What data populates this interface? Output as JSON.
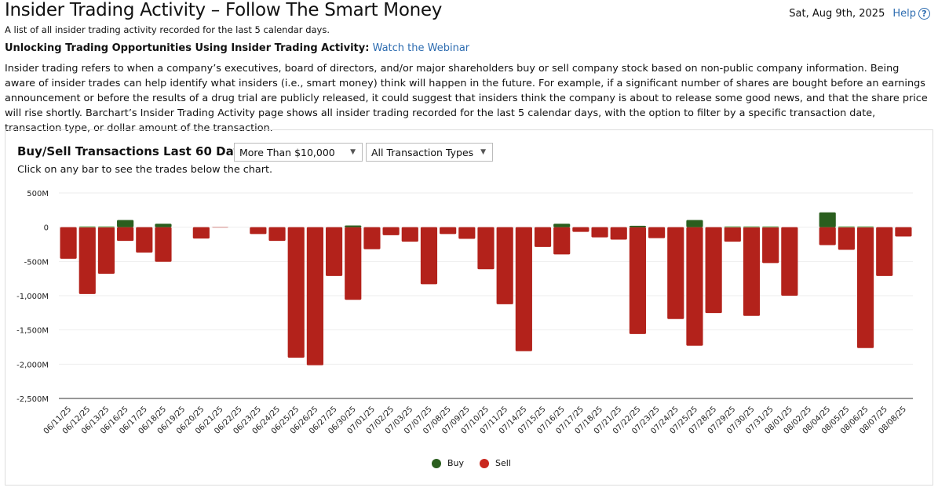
{
  "header": {
    "title": "Insider Trading Activity – Follow The Smart Money",
    "subtitle": "A list of all insider trading activity recorded for the last 5 calendar days.",
    "date": "Sat, Aug 9th, 2025",
    "help_label": "Help",
    "help_icon": "question-circle-icon"
  },
  "promo": {
    "label": "Unlocking Trading Opportunities Using Insider Trading Activity:",
    "link": "Watch the Webinar"
  },
  "description": "Insider trading refers to when a company’s executives, board of directors, and/or major shareholders buy or sell company stock based on non-public company information. Being aware of insider trades can help identify what insiders (i.e., smart money) think will happen in the future. For example, if a significant number of shares are bought before an earnings announcement or before the results of a drug trial are publicly released, it could suggest that insiders think the company is about to release some good news, and that the share price will rise shortly. Barchart’s Insider Trading Activity page shows all insider trading recorded for the last 5 calendar days, with the option to filter by a specific transaction date, transaction type, or dollar amount of the transaction.",
  "filters": {
    "amount": "More Than $10,000",
    "type": "All Transaction Types"
  },
  "chart_hint": "Click on any bar to see the trades below the chart.",
  "colors": {
    "buy": "#2a5e1e",
    "sell": "#b3221b"
  },
  "chart_data": {
    "type": "bar",
    "title": "Buy/Sell Transactions Last 60 Days",
    "xlabel": "",
    "ylabel": "",
    "ylim": [
      -2500,
      500
    ],
    "yticks": [
      500,
      0,
      -500,
      -1000,
      -1500,
      -2000,
      -2500
    ],
    "ytick_labels": [
      "500M",
      "0",
      "-500M",
      "-1,000M",
      "-1,500M",
      "-2,000M",
      "-2,500M"
    ],
    "legend": {
      "position": "bottom",
      "entries": [
        "Buy",
        "Sell"
      ]
    },
    "categories": [
      "06/11/25",
      "06/12/25",
      "06/13/25",
      "06/16/25",
      "06/17/25",
      "06/18/25",
      "06/19/25",
      "06/20/25",
      "06/21/25",
      "06/22/25",
      "06/23/25",
      "06/24/25",
      "06/25/25",
      "06/26/25",
      "06/27/25",
      "06/30/25",
      "07/01/25",
      "07/02/25",
      "07/03/25",
      "07/07/25",
      "07/08/25",
      "07/09/25",
      "07/10/25",
      "07/11/25",
      "07/14/25",
      "07/15/25",
      "07/16/25",
      "07/17/25",
      "07/18/25",
      "07/21/25",
      "07/22/25",
      "07/23/25",
      "07/24/25",
      "07/25/25",
      "07/28/25",
      "07/29/25",
      "07/30/25",
      "07/31/25",
      "08/01/25",
      "08/02/25",
      "08/04/25",
      "08/05/25",
      "08/06/25",
      "08/07/25",
      "08/08/25"
    ],
    "series": [
      {
        "name": "Buy",
        "values": [
          0,
          15,
          15,
          105,
          0,
          50,
          0,
          0,
          0,
          0,
          0,
          0,
          0,
          0,
          0,
          25,
          0,
          0,
          0,
          0,
          0,
          0,
          0,
          0,
          0,
          0,
          50,
          0,
          0,
          0,
          20,
          0,
          0,
          105,
          0,
          15,
          15,
          15,
          0,
          0,
          216,
          15,
          15,
          0,
          0
        ]
      },
      {
        "name": "Sell",
        "values": [
          -460,
          -975,
          -680,
          -200,
          -370,
          -505,
          0,
          -165,
          -5,
          0,
          -100,
          -200,
          -1905,
          -2015,
          -712,
          -1060,
          -322,
          -117,
          -212,
          -833,
          -100,
          -170,
          -614,
          -1125,
          -1810,
          -288,
          -398,
          -68,
          -148,
          -182,
          -1560,
          -160,
          -1340,
          -1730,
          -1253,
          -212,
          -1295,
          -523,
          -1000,
          0,
          -261,
          -330,
          -1765,
          -712,
          -136
        ]
      }
    ]
  }
}
